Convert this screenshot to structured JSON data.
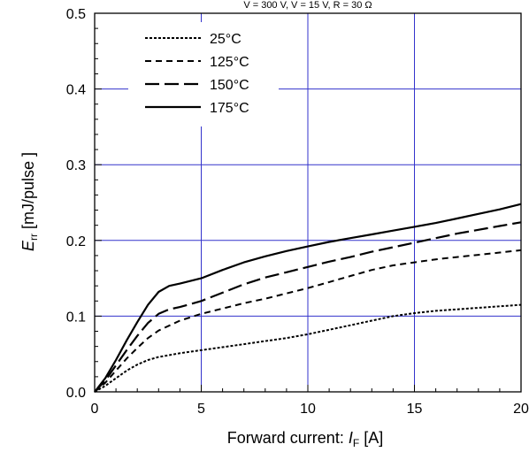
{
  "chart_data": {
    "type": "line",
    "title": "",
    "top_note": "V  = 300 V, V   = 15 V, R  = 30 Ω",
    "xlabel": {
      "main": "Forward current: ",
      "symbol": "I",
      "subscript": "F",
      "unit": " [A]"
    },
    "ylabel": {
      "symbol": "E",
      "subscript": "rr",
      "unit": " [mJ/pulse ]"
    },
    "xlim": [
      0,
      20
    ],
    "ylim": [
      0,
      0.5
    ],
    "xticks": [
      0,
      5,
      10,
      15,
      20
    ],
    "xtick_labels": [
      "0",
      "5",
      "10",
      "15",
      "20"
    ],
    "yticks": [
      0,
      0.1,
      0.2,
      0.3,
      0.4,
      0.5
    ],
    "ytick_labels": [
      "0.0",
      "0.1",
      "0.2",
      "0.3",
      "0.4",
      "0.5"
    ],
    "grid": true,
    "grid_color": "#3333cc",
    "legend_position": "top-left",
    "series": [
      {
        "name": "25°C",
        "dash": "dotted",
        "x": [
          0,
          0.5,
          1,
          1.5,
          2,
          2.5,
          3,
          4,
          5,
          6,
          7,
          8,
          9,
          10,
          11,
          12,
          13,
          14,
          15,
          16,
          17,
          18,
          19,
          20
        ],
        "y": [
          0,
          0.008,
          0.018,
          0.028,
          0.036,
          0.042,
          0.046,
          0.051,
          0.055,
          0.059,
          0.063,
          0.067,
          0.071,
          0.076,
          0.082,
          0.088,
          0.094,
          0.1,
          0.104,
          0.107,
          0.109,
          0.111,
          0.113,
          0.115
        ]
      },
      {
        "name": "125°C",
        "dash": "short-dash",
        "x": [
          0,
          0.5,
          1,
          1.5,
          2,
          2.5,
          3,
          4,
          5,
          6,
          7,
          8,
          9,
          10,
          11,
          12,
          13,
          14,
          15,
          16,
          17,
          18,
          19,
          20
        ],
        "y": [
          0,
          0.012,
          0.028,
          0.044,
          0.058,
          0.071,
          0.081,
          0.094,
          0.103,
          0.11,
          0.117,
          0.123,
          0.13,
          0.137,
          0.145,
          0.153,
          0.161,
          0.167,
          0.171,
          0.175,
          0.178,
          0.181,
          0.184,
          0.187
        ]
      },
      {
        "name": "150°C",
        "dash": "long-dash",
        "x": [
          0,
          0.5,
          1,
          1.5,
          2,
          2.5,
          3,
          3.5,
          4,
          5,
          6,
          7,
          8,
          9,
          10,
          11,
          12,
          13,
          14,
          15,
          16,
          17,
          18,
          19,
          20
        ],
        "y": [
          0,
          0.015,
          0.035,
          0.055,
          0.074,
          0.091,
          0.103,
          0.109,
          0.112,
          0.12,
          0.131,
          0.142,
          0.151,
          0.158,
          0.165,
          0.172,
          0.178,
          0.185,
          0.191,
          0.197,
          0.203,
          0.209,
          0.214,
          0.219,
          0.224
        ]
      },
      {
        "name": "175°C",
        "dash": "solid",
        "x": [
          0,
          0.5,
          1,
          1.5,
          2,
          2.5,
          3,
          3.5,
          4,
          5,
          6,
          7,
          8,
          9,
          10,
          11,
          12,
          13,
          14,
          15,
          16,
          17,
          18,
          19,
          20
        ],
        "y": [
          0,
          0.018,
          0.042,
          0.068,
          0.092,
          0.115,
          0.132,
          0.14,
          0.143,
          0.15,
          0.161,
          0.171,
          0.179,
          0.186,
          0.192,
          0.198,
          0.203,
          0.208,
          0.213,
          0.218,
          0.223,
          0.229,
          0.235,
          0.241,
          0.248
        ]
      }
    ]
  }
}
